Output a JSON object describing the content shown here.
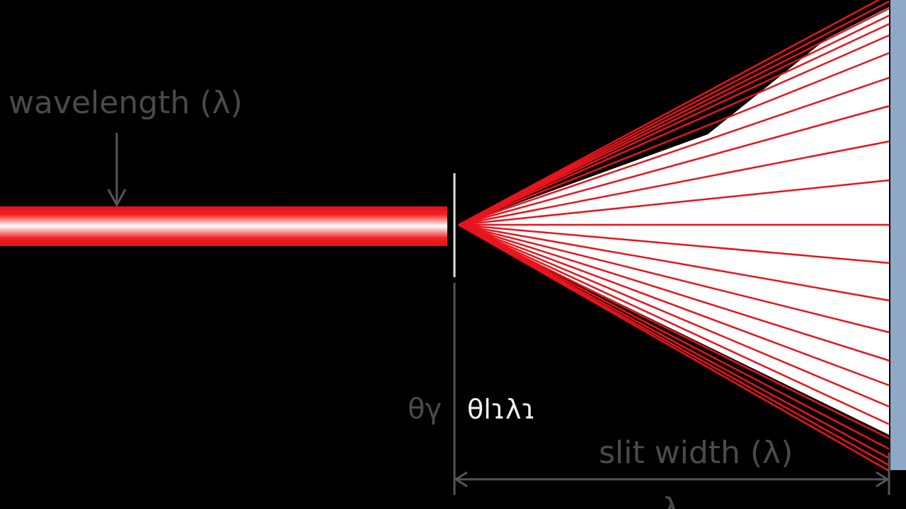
{
  "labels": {
    "wavelength": "wavelength (λ)",
    "angle_left": "θγ",
    "angle_right": "θlɿλɿ",
    "slit_width": "slit width (λ)",
    "bottom": "λ"
  }
}
